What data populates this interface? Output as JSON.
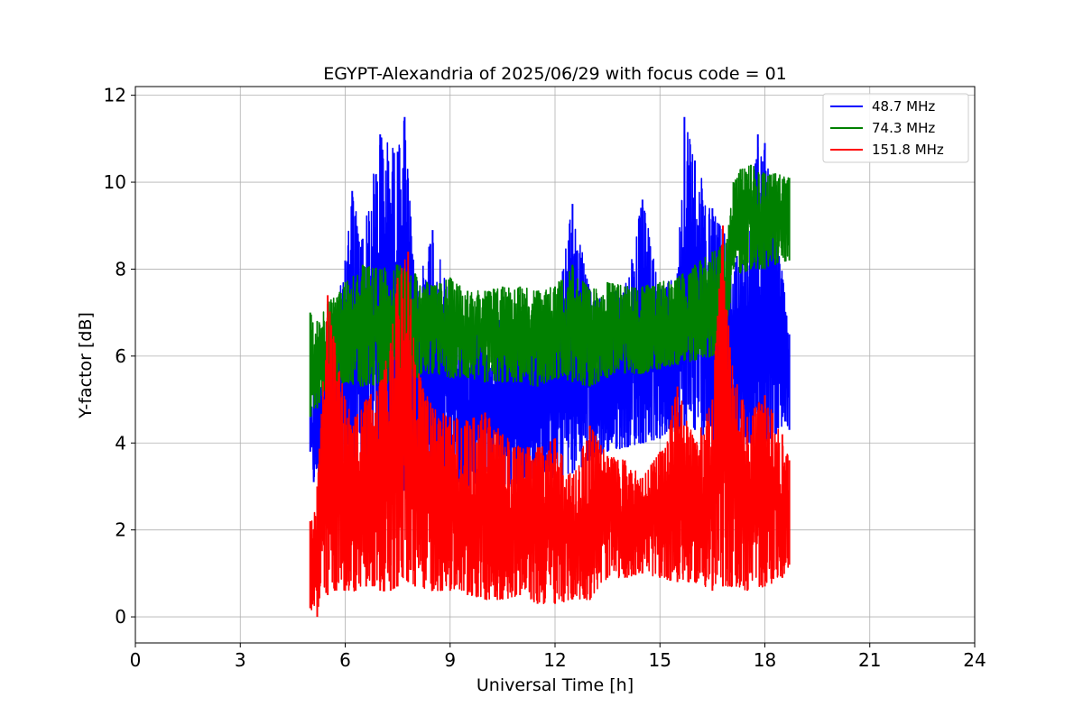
{
  "chart_data": {
    "type": "line",
    "title": "EGYPT-Alexandria of 2025/06/29 with focus code = 01",
    "xlabel": "Universal Time [h]",
    "ylabel": "Y-factor [dB]",
    "xlim": [
      0,
      24
    ],
    "ylim": [
      -0.6,
      12.2
    ],
    "xticks": [
      0,
      3,
      6,
      9,
      12,
      15,
      18,
      21,
      24
    ],
    "yticks": [
      0,
      2,
      4,
      6,
      8,
      10,
      12
    ],
    "grid": true,
    "legend_position": "top-right",
    "series": [
      {
        "name": " 48.7 MHz",
        "color": "#0000ff",
        "x": [
          5.0,
          5.1,
          5.5,
          6.0,
          6.2,
          6.5,
          7.0,
          7.5,
          7.7,
          8.0,
          8.5,
          9.0,
          9.5,
          10.0,
          10.5,
          11.0,
          11.5,
          12.0,
          12.5,
          13.0,
          13.5,
          14.0,
          14.5,
          15.0,
          15.5,
          15.7,
          16.0,
          16.5,
          16.8,
          17.0,
          17.2,
          17.5,
          17.8,
          18.0,
          18.3,
          18.7
        ],
        "upper": [
          4.6,
          5.2,
          6.0,
          8.2,
          9.8,
          8.7,
          11.1,
          10.7,
          11.5,
          7.6,
          8.9,
          7.3,
          6.8,
          6.8,
          6.9,
          6.8,
          6.7,
          6.9,
          9.5,
          7.5,
          7.4,
          7.6,
          9.6,
          7.6,
          7.9,
          11.5,
          10.5,
          9.4,
          9.0,
          8.2,
          8.3,
          8.4,
          11.1,
          10.9,
          9.3,
          6.5
        ],
        "lower": [
          3.8,
          3.1,
          3.5,
          3.6,
          3.3,
          3.0,
          2.9,
          2.8,
          2.9,
          3.0,
          3.1,
          3.0,
          3.0,
          2.9,
          2.9,
          3.1,
          3.0,
          3.2,
          3.3,
          3.6,
          3.8,
          3.9,
          4.0,
          4.1,
          4.3,
          4.4,
          4.3,
          3.8,
          4.2,
          4.0,
          3.9,
          3.9,
          4.0,
          4.0,
          4.2,
          4.3
        ]
      },
      {
        "name": " 74.3 MHz",
        "color": "#008000",
        "x": [
          5.0,
          5.2,
          5.5,
          6.0,
          6.5,
          7.0,
          7.5,
          8.0,
          8.5,
          9.0,
          9.5,
          10.0,
          10.5,
          11.0,
          11.5,
          12.0,
          12.5,
          13.0,
          13.5,
          14.0,
          14.5,
          15.0,
          15.5,
          16.0,
          16.5,
          16.9,
          17.1,
          17.3,
          17.6,
          18.0,
          18.3,
          18.7
        ],
        "upper": [
          7.0,
          6.8,
          7.2,
          7.7,
          8.1,
          8.0,
          8.1,
          7.9,
          7.6,
          7.8,
          7.5,
          7.5,
          7.6,
          7.6,
          7.5,
          7.6,
          8.1,
          7.5,
          7.7,
          7.6,
          7.6,
          7.7,
          7.8,
          8.1,
          8.4,
          8.6,
          10.0,
          10.3,
          10.4,
          10.2,
          10.2,
          10.1
        ],
        "lower": [
          4.6,
          4.8,
          5.2,
          5.4,
          5.3,
          5.3,
          5.5,
          5.5,
          5.6,
          5.5,
          5.5,
          5.4,
          5.4,
          5.4,
          5.3,
          5.5,
          5.4,
          5.3,
          5.5,
          5.6,
          5.6,
          5.7,
          5.8,
          5.9,
          6.0,
          6.2,
          8.0,
          7.9,
          8.0,
          8.0,
          8.1,
          8.2
        ]
      },
      {
        "name": " 151.8 MHz",
        "color": "#ff0000",
        "x": [
          5.0,
          5.2,
          5.5,
          5.7,
          6.0,
          6.3,
          6.6,
          7.0,
          7.3,
          7.5,
          7.8,
          8.0,
          8.5,
          9.0,
          9.5,
          10.0,
          10.5,
          11.0,
          11.5,
          12.0,
          12.5,
          13.0,
          13.5,
          14.0,
          14.5,
          15.0,
          15.5,
          16.0,
          16.5,
          16.8,
          17.0,
          17.5,
          18.0,
          18.5,
          18.7
        ],
        "upper": [
          2.2,
          3.0,
          7.4,
          6.3,
          5.0,
          4.6,
          5.0,
          5.4,
          6.3,
          7.8,
          8.4,
          5.8,
          4.8,
          4.6,
          4.5,
          4.7,
          4.2,
          3.9,
          3.9,
          4.1,
          3.2,
          4.4,
          3.7,
          3.6,
          3.2,
          3.8,
          5.3,
          4.0,
          5.0,
          9.0,
          6.2,
          4.6,
          5.1,
          4.2,
          3.6
        ],
        "lower": [
          0.2,
          0.0,
          0.5,
          0.6,
          0.6,
          0.6,
          0.7,
          0.6,
          0.6,
          0.7,
          0.8,
          0.7,
          0.6,
          0.6,
          0.5,
          0.4,
          0.4,
          0.5,
          0.3,
          0.3,
          0.4,
          0.4,
          0.9,
          0.9,
          1.0,
          0.9,
          0.8,
          0.8,
          0.6,
          0.7,
          0.7,
          0.6,
          0.7,
          0.9,
          1.2
        ]
      }
    ]
  }
}
